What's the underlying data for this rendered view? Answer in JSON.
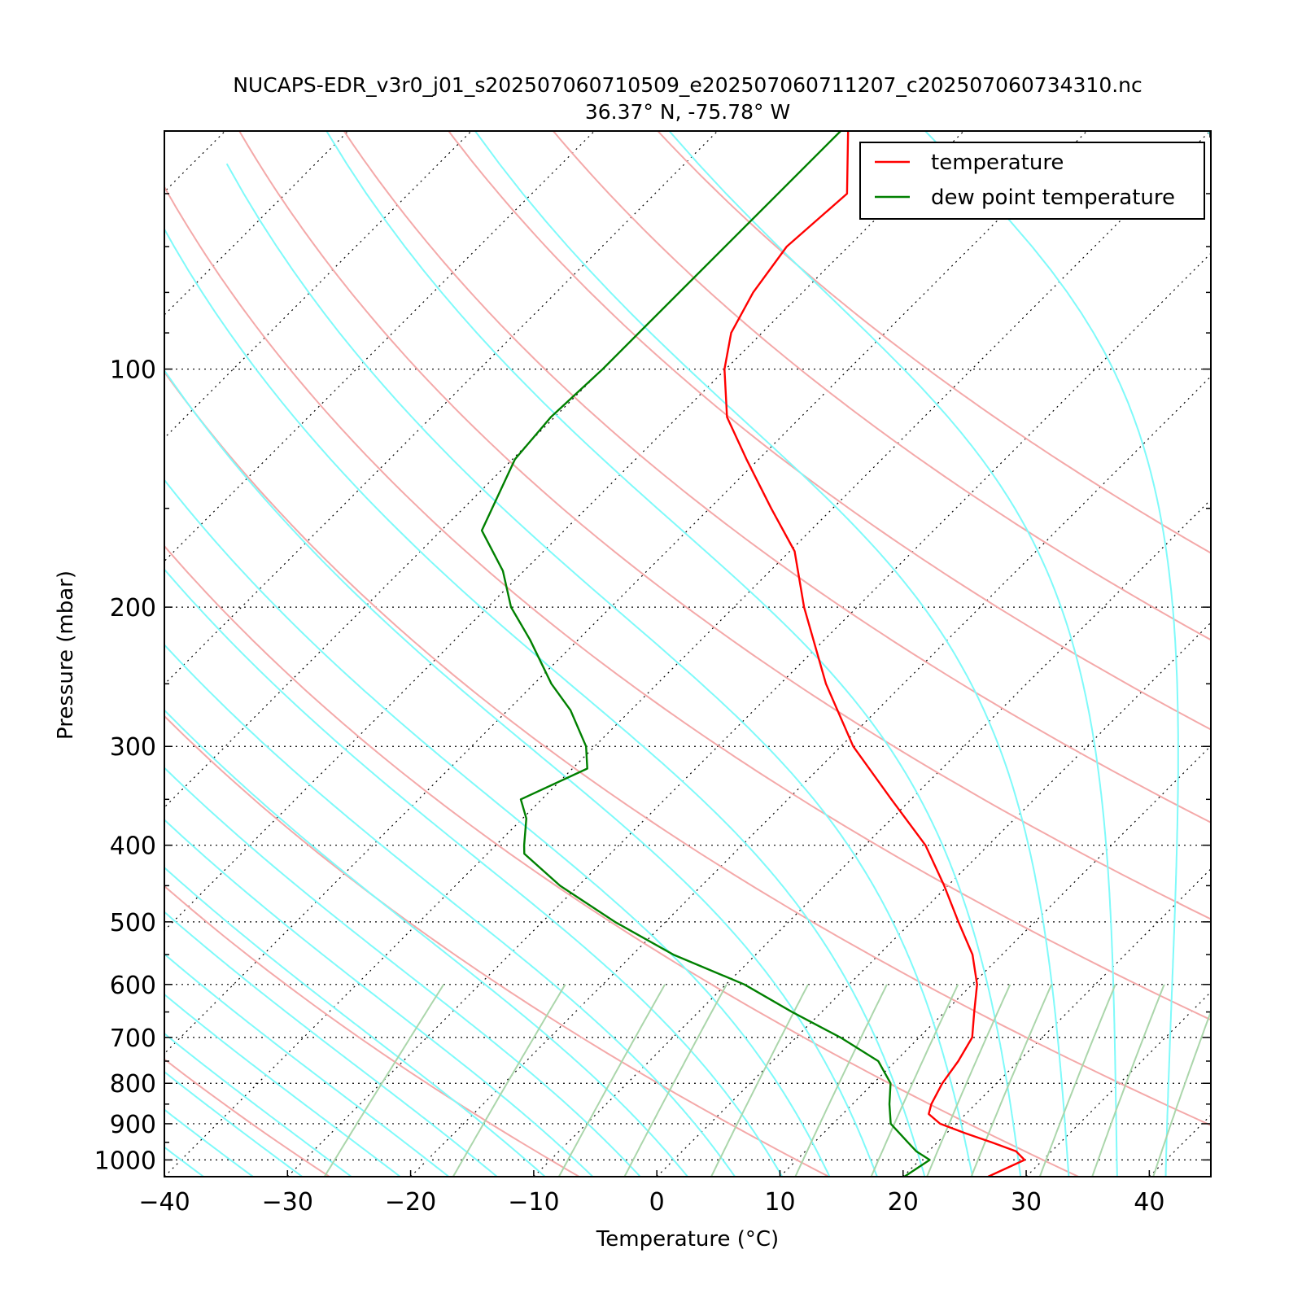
{
  "chart_data": {
    "type": "skew-t log-p",
    "title": "NUCAPS-EDR_v3r0_j01_s202507060710509_e202507060711207_c202507060734310.nc",
    "subtitle": "36.37$^\\circ$N, -75.78$^\\circ$W",
    "subtitle_display": "36.37° N, -75.78° W",
    "xlabel": "Temperature ($^\\circ$C)",
    "xlabel_display": "Temperature (°C)",
    "ylabel": "Pressure (mbar)",
    "xlim": [
      -40,
      45
    ],
    "ylim": [
      1050,
      50
    ],
    "y_scale": "log",
    "x_ticks": [
      -40,
      -30,
      -20,
      -10,
      0,
      10,
      20,
      30,
      40
    ],
    "x_tick_labels": [
      "−40",
      "−30",
      "−20",
      "−10",
      "0",
      "10",
      "20",
      "30",
      "40"
    ],
    "y_ticks": [
      100,
      200,
      300,
      400,
      500,
      600,
      700,
      800,
      900,
      1000
    ],
    "y_tick_labels": [
      "100",
      "200",
      "300",
      "400",
      "500",
      "600",
      "700",
      "800",
      "900",
      "1000"
    ],
    "grid": "dotted isobars at labeled pressures and dotted skewed isotherms",
    "legend_position": "top-right",
    "series": [
      {
        "name": "temperature",
        "color": "#ff0000",
        "points": [
          {
            "p": 1050,
            "t": 26.9
          },
          {
            "p": 1000,
            "t": 28.5
          },
          {
            "p": 975,
            "t": 27.1
          },
          {
            "p": 950,
            "t": 24.4
          },
          {
            "p": 925,
            "t": 21.5
          },
          {
            "p": 900,
            "t": 18.7
          },
          {
            "p": 875,
            "t": 17.0
          },
          {
            "p": 850,
            "t": 16.4
          },
          {
            "p": 800,
            "t": 15.6
          },
          {
            "p": 750,
            "t": 15.1
          },
          {
            "p": 700,
            "t": 14.3
          },
          {
            "p": 650,
            "t": 12.4
          },
          {
            "p": 600,
            "t": 10.4
          },
          {
            "p": 550,
            "t": 7.6
          },
          {
            "p": 500,
            "t": 3.8
          },
          {
            "p": 450,
            "t": -0.3
          },
          {
            "p": 400,
            "t": -5.1
          },
          {
            "p": 350,
            "t": -11.6
          },
          {
            "p": 300,
            "t": -19.0
          },
          {
            "p": 250,
            "t": -26.3
          },
          {
            "p": 200,
            "t": -34.3
          },
          {
            "p": 170,
            "t": -39.6
          },
          {
            "p": 150,
            "t": -45.0
          },
          {
            "p": 130,
            "t": -51.0
          },
          {
            "p": 115,
            "t": -56.0
          },
          {
            "p": 100,
            "t": -60.1
          },
          {
            "p": 90,
            "t": -62.5
          },
          {
            "p": 80,
            "t": -64.0
          },
          {
            "p": 70,
            "t": -65.0
          },
          {
            "p": 60,
            "t": -64.4
          },
          {
            "p": 50,
            "t": -69.4
          }
        ]
      },
      {
        "name": "dew point temperature",
        "color": "#008000",
        "points": [
          {
            "p": 1050,
            "t": 20.1
          },
          {
            "p": 1000,
            "t": 20.8
          },
          {
            "p": 975,
            "t": 19.0
          },
          {
            "p": 950,
            "t": 17.6
          },
          {
            "p": 900,
            "t": 14.7
          },
          {
            "p": 850,
            "t": 13.0
          },
          {
            "p": 800,
            "t": 11.4
          },
          {
            "p": 750,
            "t": 8.6
          },
          {
            "p": 700,
            "t": 3.6
          },
          {
            "p": 650,
            "t": -2.4
          },
          {
            "p": 600,
            "t": -8.5
          },
          {
            "p": 550,
            "t": -16.7
          },
          {
            "p": 500,
            "t": -24.1
          },
          {
            "p": 450,
            "t": -31.5
          },
          {
            "p": 410,
            "t": -37.0
          },
          {
            "p": 400,
            "t": -37.7
          },
          {
            "p": 370,
            "t": -39.7
          },
          {
            "p": 350,
            "t": -41.7
          },
          {
            "p": 320,
            "t": -38.8
          },
          {
            "p": 300,
            "t": -40.7
          },
          {
            "p": 270,
            "t": -44.9
          },
          {
            "p": 250,
            "t": -48.6
          },
          {
            "p": 220,
            "t": -53.9
          },
          {
            "p": 200,
            "t": -58.1
          },
          {
            "p": 180,
            "t": -61.7
          },
          {
            "p": 160,
            "t": -66.7
          },
          {
            "p": 130,
            "t": -69.8
          },
          {
            "p": 115,
            "t": -70.3
          },
          {
            "p": 100,
            "t": -70.0
          },
          {
            "p": 90,
            "t": -70.0
          },
          {
            "p": 80,
            "t": -70.0
          },
          {
            "p": 50,
            "t": -70.0
          }
        ]
      }
    ],
    "background_lines": {
      "dry_adiabats_theta_c": [
        -30,
        -10,
        10,
        30,
        50,
        70,
        90,
        110,
        130,
        150,
        170
      ],
      "dry_adiabat_color": "#f4a9a9",
      "moist_adiabats_c": [
        -44,
        -40,
        -36,
        -32,
        -28,
        -24,
        -20,
        -16,
        -12,
        -8,
        -4,
        0,
        4,
        8,
        12,
        16,
        20,
        24,
        28,
        32,
        36,
        40,
        44
      ],
      "moist_adiabat_color": "#7ffafa",
      "mixing_ratios_gkg": [
        0.4,
        1,
        2,
        3,
        5,
        8,
        12,
        16,
        20,
        28,
        36,
        48
      ],
      "mixing_ratio_color": "#abd6ab",
      "isotherms_c": [
        -120,
        -110,
        -100,
        -90,
        -80,
        -70,
        -60,
        -50,
        -40,
        -30,
        -20,
        -10,
        0,
        10,
        20,
        30,
        40
      ]
    }
  }
}
